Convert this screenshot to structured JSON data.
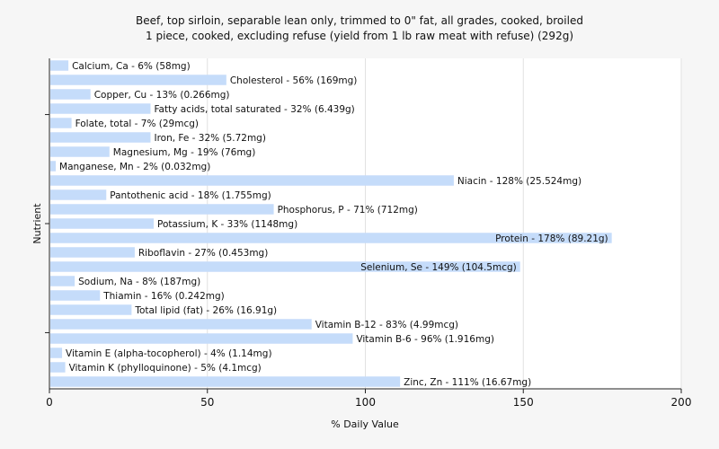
{
  "chart_data": {
    "type": "bar",
    "orientation": "horizontal",
    "title": "Beef, top sirloin, separable lean only, trimmed to 0\" fat, all grades, cooked, broiled",
    "subtitle": "1 piece, cooked, excluding refuse (yield from 1 lb raw meat with refuse) (292g)",
    "xlabel": "% Daily Value",
    "ylabel": "Nutrient",
    "xlim": [
      0,
      200
    ],
    "xticks": [
      0,
      50,
      100,
      150,
      200
    ],
    "grid": true,
    "bar_color": "#c5dcfa",
    "categories": [
      "Calcium, Ca",
      "Cholesterol",
      "Copper, Cu",
      "Fatty acids, total saturated",
      "Folate, total",
      "Iron, Fe",
      "Magnesium, Mg",
      "Manganese, Mn",
      "Niacin",
      "Pantothenic acid",
      "Phosphorus, P",
      "Potassium, K",
      "Protein",
      "Riboflavin",
      "Selenium, Se",
      "Sodium, Na",
      "Thiamin",
      "Total lipid (fat)",
      "Vitamin B-12",
      "Vitamin B-6",
      "Vitamin E (alpha-tocopherol)",
      "Vitamin K (phylloquinone)",
      "Zinc, Zn"
    ],
    "values": [
      6,
      56,
      13,
      32,
      7,
      32,
      19,
      2,
      128,
      18,
      71,
      33,
      178,
      27,
      149,
      8,
      16,
      26,
      83,
      96,
      4,
      5,
      111
    ],
    "labels": [
      "Calcium, Ca - 6% (58mg)",
      "Cholesterol - 56% (169mg)",
      "Copper, Cu - 13% (0.266mg)",
      "Fatty acids, total saturated - 32% (6.439g)",
      "Folate, total - 7% (29mcg)",
      "Iron, Fe - 32% (5.72mg)",
      "Magnesium, Mg - 19% (76mg)",
      "Manganese, Mn - 2% (0.032mg)",
      "Niacin - 128% (25.524mg)",
      "Pantothenic acid - 18% (1.755mg)",
      "Phosphorus, P - 71% (712mg)",
      "Potassium, K - 33% (1148mg)",
      "Protein - 178% (89.21g)",
      "Riboflavin - 27% (0.453mg)",
      "Selenium, Se - 149% (104.5mcg)",
      "Sodium, Na - 8% (187mg)",
      "Thiamin - 16% (0.242mg)",
      "Total lipid (fat) - 26% (16.91g)",
      "Vitamin B-12 - 83% (4.99mcg)",
      "Vitamin B-6 - 96% (1.916mg)",
      "Vitamin E (alpha-tocopherol) - 4% (1.14mg)",
      "Vitamin K (phylloquinone) - 5% (4.1mcg)",
      "Zinc, Zn - 111% (16.67mg)"
    ]
  }
}
